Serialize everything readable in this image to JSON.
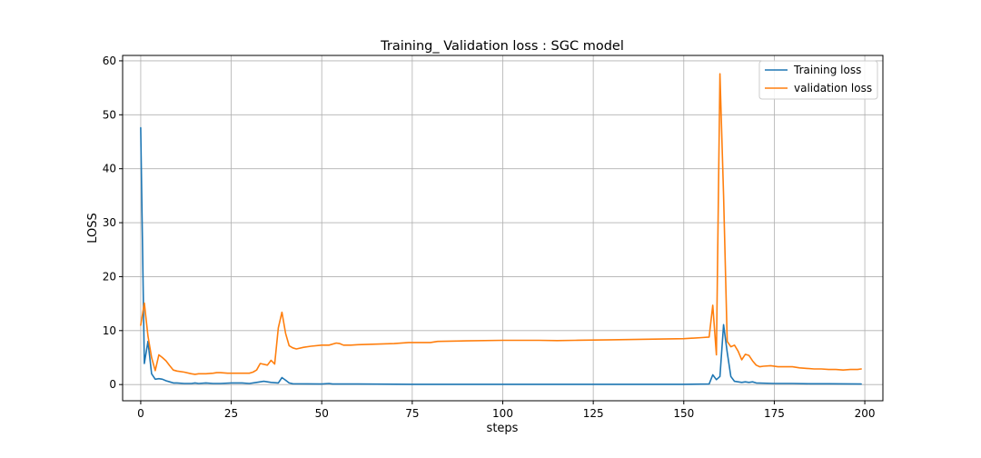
{
  "chart_data": {
    "type": "line",
    "title": "Training_ Validation loss : SGC model",
    "xlabel": "steps",
    "ylabel": "LOSS",
    "xlim": [
      -5,
      205
    ],
    "ylim": [
      -3,
      61
    ],
    "xticks": [
      0,
      25,
      50,
      75,
      100,
      125,
      150,
      175,
      200
    ],
    "yticks": [
      0,
      10,
      20,
      30,
      40,
      50,
      60
    ],
    "grid": true,
    "legend_position": "top-right",
    "series": [
      {
        "name": "Training loss",
        "color": "#1f77b4",
        "points": [
          [
            0,
            47.6
          ],
          [
            1,
            3.9
          ],
          [
            2,
            8.0
          ],
          [
            3,
            2.0
          ],
          [
            4,
            1.0
          ],
          [
            5,
            1.1
          ],
          [
            6,
            1.0
          ],
          [
            7,
            0.7
          ],
          [
            8,
            0.5
          ],
          [
            9,
            0.3
          ],
          [
            10,
            0.3
          ],
          [
            12,
            0.2
          ],
          [
            14,
            0.2
          ],
          [
            15,
            0.3
          ],
          [
            16,
            0.2
          ],
          [
            18,
            0.3
          ],
          [
            20,
            0.2
          ],
          [
            22,
            0.2
          ],
          [
            25,
            0.3
          ],
          [
            28,
            0.3
          ],
          [
            30,
            0.2
          ],
          [
            32,
            0.4
          ],
          [
            34,
            0.6
          ],
          [
            35,
            0.5
          ],
          [
            36,
            0.4
          ],
          [
            38,
            0.3
          ],
          [
            39,
            1.3
          ],
          [
            40,
            0.8
          ],
          [
            41,
            0.3
          ],
          [
            42,
            0.15
          ],
          [
            50,
            0.1
          ],
          [
            52,
            0.2
          ],
          [
            53,
            0.1
          ],
          [
            60,
            0.1
          ],
          [
            75,
            0.05
          ],
          [
            100,
            0.05
          ],
          [
            125,
            0.05
          ],
          [
            150,
            0.05
          ],
          [
            157,
            0.1
          ],
          [
            158,
            1.8
          ],
          [
            159,
            0.9
          ],
          [
            160,
            1.5
          ],
          [
            161,
            11.1
          ],
          [
            162,
            6.0
          ],
          [
            163,
            1.5
          ],
          [
            164,
            0.6
          ],
          [
            165,
            0.5
          ],
          [
            166,
            0.4
          ],
          [
            167,
            0.5
          ],
          [
            168,
            0.4
          ],
          [
            169,
            0.5
          ],
          [
            170,
            0.3
          ],
          [
            175,
            0.2
          ],
          [
            180,
            0.2
          ],
          [
            185,
            0.15
          ],
          [
            190,
            0.15
          ],
          [
            199,
            0.1
          ]
        ]
      },
      {
        "name": "validation loss",
        "color": "#ff7f0e",
        "points": [
          [
            0,
            11.0
          ],
          [
            1,
            15.1
          ],
          [
            2,
            9.0
          ],
          [
            3,
            5.0
          ],
          [
            4,
            2.6
          ],
          [
            5,
            5.5
          ],
          [
            6,
            5.0
          ],
          [
            7,
            4.4
          ],
          [
            8,
            3.5
          ],
          [
            9,
            2.7
          ],
          [
            10,
            2.5
          ],
          [
            12,
            2.3
          ],
          [
            14,
            2.0
          ],
          [
            15,
            1.9
          ],
          [
            16,
            2.0
          ],
          [
            18,
            2.0
          ],
          [
            20,
            2.1
          ],
          [
            21,
            2.2
          ],
          [
            22,
            2.2
          ],
          [
            24,
            2.1
          ],
          [
            26,
            2.1
          ],
          [
            28,
            2.1
          ],
          [
            30,
            2.1
          ],
          [
            31,
            2.3
          ],
          [
            32,
            2.7
          ],
          [
            33,
            3.9
          ],
          [
            35,
            3.6
          ],
          [
            36,
            4.5
          ],
          [
            37,
            3.8
          ],
          [
            38,
            10.5
          ],
          [
            39,
            13.4
          ],
          [
            40,
            9.5
          ],
          [
            41,
            7.2
          ],
          [
            42,
            6.8
          ],
          [
            43,
            6.6
          ],
          [
            45,
            6.9
          ],
          [
            47,
            7.1
          ],
          [
            50,
            7.3
          ],
          [
            52,
            7.3
          ],
          [
            54,
            7.7
          ],
          [
            55,
            7.6
          ],
          [
            56,
            7.3
          ],
          [
            58,
            7.3
          ],
          [
            60,
            7.4
          ],
          [
            65,
            7.5
          ],
          [
            70,
            7.6
          ],
          [
            74,
            7.8
          ],
          [
            80,
            7.8
          ],
          [
            82,
            8.0
          ],
          [
            90,
            8.1
          ],
          [
            100,
            8.2
          ],
          [
            110,
            8.2
          ],
          [
            115,
            8.15
          ],
          [
            120,
            8.2
          ],
          [
            130,
            8.3
          ],
          [
            140,
            8.4
          ],
          [
            150,
            8.5
          ],
          [
            155,
            8.7
          ],
          [
            157,
            8.8
          ],
          [
            158,
            14.7
          ],
          [
            159,
            5.5
          ],
          [
            160,
            57.6
          ],
          [
            161,
            35.0
          ],
          [
            162,
            8.0
          ],
          [
            163,
            7.0
          ],
          [
            164,
            7.3
          ],
          [
            165,
            6.2
          ],
          [
            166,
            4.6
          ],
          [
            167,
            5.6
          ],
          [
            168,
            5.4
          ],
          [
            169,
            4.4
          ],
          [
            170,
            3.6
          ],
          [
            171,
            3.3
          ],
          [
            172,
            3.4
          ],
          [
            174,
            3.5
          ],
          [
            176,
            3.3
          ],
          [
            178,
            3.3
          ],
          [
            180,
            3.3
          ],
          [
            182,
            3.1
          ],
          [
            184,
            3.0
          ],
          [
            186,
            2.9
          ],
          [
            188,
            2.9
          ],
          [
            190,
            2.8
          ],
          [
            192,
            2.8
          ],
          [
            194,
            2.7
          ],
          [
            196,
            2.8
          ],
          [
            198,
            2.8
          ],
          [
            199,
            2.9
          ]
        ]
      }
    ]
  }
}
